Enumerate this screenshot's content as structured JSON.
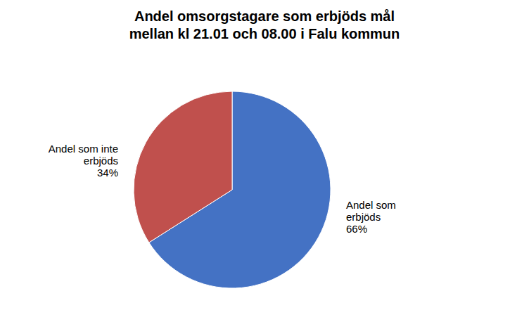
{
  "chart_data": {
    "type": "pie",
    "title": "Andel omsorgstagare som erbjöds mål\nmellan kl 21.01 och 08.00 i Falu kommun",
    "values": [
      66,
      34
    ],
    "value_labels": [
      "Andel som\nerbjöds\n66%",
      "Andel som inte\nerbjöds\n34%"
    ],
    "colors": [
      "#4472C4",
      "#C0504D"
    ],
    "data_labels": true
  }
}
